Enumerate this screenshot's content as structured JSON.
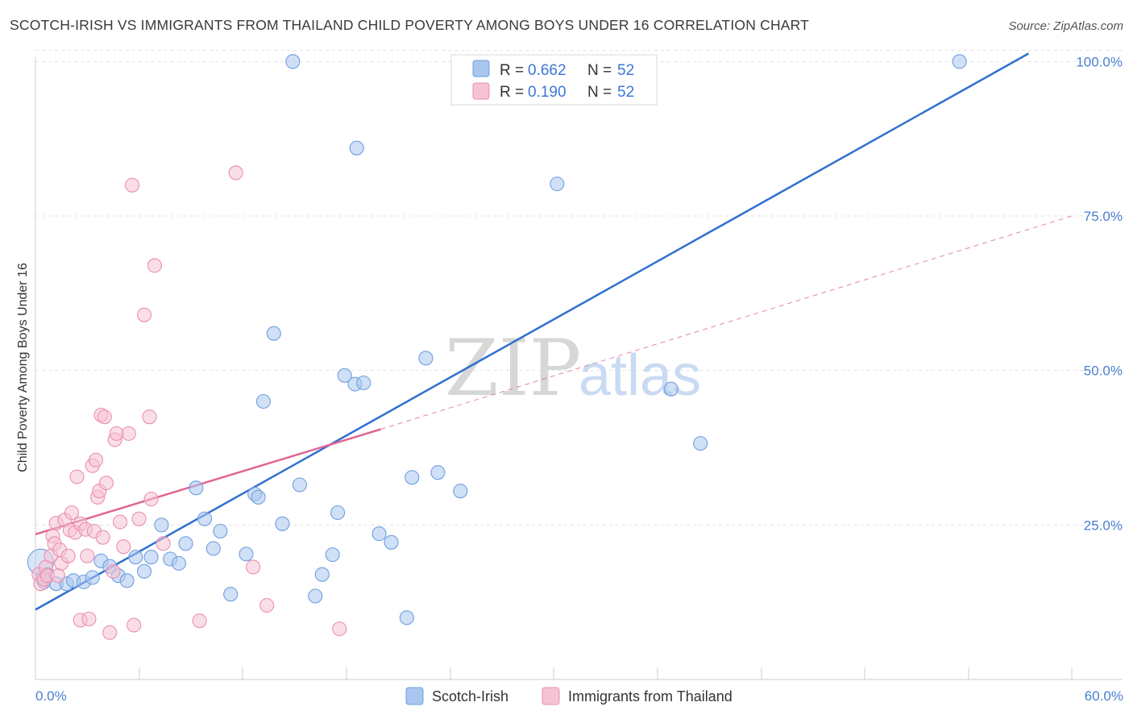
{
  "title": "SCOTCH-IRISH VS IMMIGRANTS FROM THAILAND CHILD POVERTY AMONG BOYS UNDER 16 CORRELATION CHART",
  "source": "Source: ZipAtlas.com",
  "watermark": {
    "zip": "ZIP",
    "atlas": "atlas"
  },
  "legend_top": {
    "r_label": "R = ",
    "n_label": "N = ",
    "rows": [
      {
        "series": "Scotch-Irish",
        "r": "0.662",
        "n": "52"
      },
      {
        "series": "Immigrants from Thailand",
        "r": "0.190",
        "n": "52"
      }
    ]
  },
  "chart_data": {
    "type": "scatter",
    "xlabel": "",
    "ylabel": "Child Poverty Among Boys Under 16",
    "xlim": [
      0,
      60
    ],
    "ylim": [
      0,
      102
    ],
    "x_tick_labels": [
      "0.0%",
      "60.0%"
    ],
    "y_ticks": [
      25,
      50,
      75,
      100
    ],
    "y_tick_labels": [
      "25.0%",
      "50.0%",
      "75.0%",
      "100.0%"
    ],
    "grid": true,
    "legend": "bottom",
    "series": [
      {
        "name": "Scotch-Irish",
        "color": "#6f9fe0",
        "fill": "#a9c6ee",
        "line_color": "#2f6fd0",
        "trend": {
          "x": [
            0,
            57.5
          ],
          "y": [
            11.3,
            101.3
          ],
          "dashed_to": null
        },
        "points": [
          [
            0.3,
            19.0
          ],
          [
            0.4,
            16.5
          ],
          [
            0.5,
            15.8
          ],
          [
            0.7,
            17.0
          ],
          [
            1.2,
            15.5
          ],
          [
            1.8,
            15.5
          ],
          [
            2.2,
            16.0
          ],
          [
            2.8,
            15.8
          ],
          [
            3.3,
            16.5
          ],
          [
            3.8,
            19.2
          ],
          [
            4.3,
            18.3
          ],
          [
            4.8,
            16.8
          ],
          [
            5.3,
            16.0
          ],
          [
            5.8,
            19.8
          ],
          [
            6.3,
            17.5
          ],
          [
            6.7,
            19.8
          ],
          [
            7.3,
            25.0
          ],
          [
            7.8,
            19.5
          ],
          [
            8.3,
            18.8
          ],
          [
            8.7,
            22.0
          ],
          [
            9.3,
            31.0
          ],
          [
            9.8,
            26.0
          ],
          [
            10.3,
            21.2
          ],
          [
            10.7,
            24.0
          ],
          [
            11.3,
            13.8
          ],
          [
            12.2,
            20.3
          ],
          [
            12.7,
            30.0
          ],
          [
            12.9,
            29.5
          ],
          [
            13.2,
            45.0
          ],
          [
            13.8,
            56.0
          ],
          [
            14.3,
            25.2
          ],
          [
            14.9,
            100.0
          ],
          [
            15.3,
            31.5
          ],
          [
            16.2,
            13.5
          ],
          [
            16.6,
            17.0
          ],
          [
            17.2,
            20.2
          ],
          [
            17.5,
            27.0
          ],
          [
            17.9,
            49.2
          ],
          [
            18.5,
            47.8
          ],
          [
            19.0,
            48.0
          ],
          [
            18.6,
            86.0
          ],
          [
            19.9,
            23.6
          ],
          [
            20.6,
            22.2
          ],
          [
            21.5,
            10.0
          ],
          [
            21.8,
            32.7
          ],
          [
            22.6,
            52.0
          ],
          [
            23.3,
            33.5
          ],
          [
            24.6,
            30.5
          ],
          [
            30.2,
            80.2
          ],
          [
            36.8,
            47.0
          ],
          [
            38.5,
            38.2
          ],
          [
            53.5,
            100.0
          ]
        ]
      },
      {
        "name": "Immigrants from Thailand",
        "color": "#eb8fae",
        "fill": "#f6c3d3",
        "line_color": "#e06693",
        "trend": {
          "x": [
            0,
            20.0
          ],
          "y": [
            23.5,
            40.5
          ],
          "dashed_to": [
            60,
            75.0
          ]
        },
        "points": [
          [
            0.2,
            17.0
          ],
          [
            0.3,
            15.5
          ],
          [
            0.5,
            16.2
          ],
          [
            0.6,
            18.2
          ],
          [
            0.7,
            16.8
          ],
          [
            0.9,
            20.0
          ],
          [
            1.0,
            23.2
          ],
          [
            1.1,
            22.0
          ],
          [
            1.2,
            25.3
          ],
          [
            1.4,
            21.0
          ],
          [
            1.5,
            18.8
          ],
          [
            1.7,
            25.8
          ],
          [
            1.9,
            20.0
          ],
          [
            2.0,
            24.2
          ],
          [
            2.1,
            27.0
          ],
          [
            2.3,
            23.8
          ],
          [
            2.4,
            32.8
          ],
          [
            2.6,
            25.2
          ],
          [
            2.6,
            9.6
          ],
          [
            2.9,
            24.3
          ],
          [
            3.0,
            20.0
          ],
          [
            3.1,
            9.8
          ],
          [
            3.3,
            34.6
          ],
          [
            3.4,
            24.0
          ],
          [
            3.5,
            35.5
          ],
          [
            3.6,
            29.5
          ],
          [
            3.7,
            30.5
          ],
          [
            3.8,
            42.8
          ],
          [
            3.9,
            23.0
          ],
          [
            4.0,
            42.5
          ],
          [
            4.1,
            31.8
          ],
          [
            4.3,
            7.6
          ],
          [
            4.5,
            17.5
          ],
          [
            4.6,
            38.8
          ],
          [
            4.7,
            39.8
          ],
          [
            4.9,
            25.5
          ],
          [
            5.1,
            21.5
          ],
          [
            5.4,
            39.8
          ],
          [
            5.6,
            80.0
          ],
          [
            5.7,
            8.8
          ],
          [
            6.0,
            26.0
          ],
          [
            6.3,
            59.0
          ],
          [
            6.6,
            42.5
          ],
          [
            6.7,
            29.2
          ],
          [
            6.9,
            67.0
          ],
          [
            7.4,
            22.0
          ],
          [
            9.5,
            9.5
          ],
          [
            11.6,
            82.0
          ],
          [
            12.6,
            18.2
          ],
          [
            13.4,
            12.0
          ],
          [
            17.6,
            8.2
          ],
          [
            1.3,
            16.8
          ]
        ]
      }
    ]
  },
  "bottom_legend": [
    "Scotch-Irish",
    "Immigrants from Thailand"
  ]
}
